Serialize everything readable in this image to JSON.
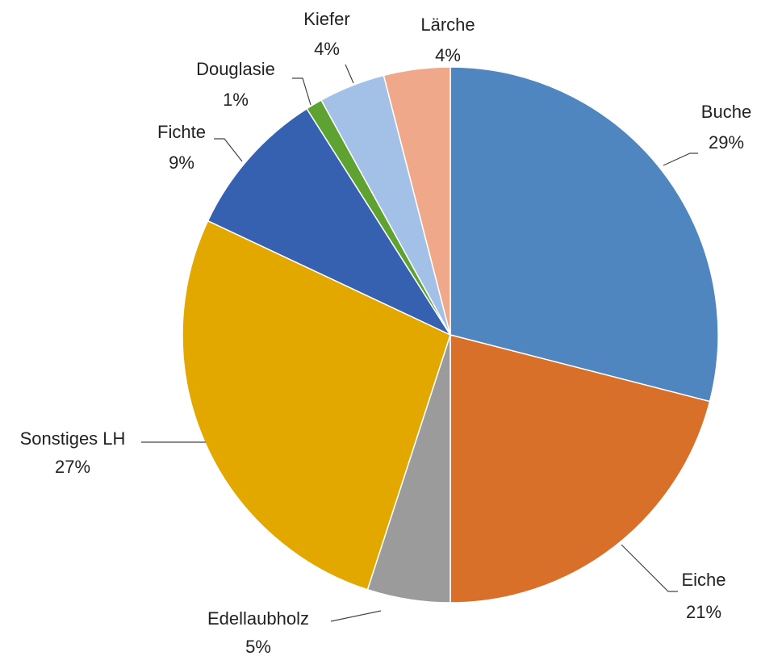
{
  "chart_data": {
    "type": "pie",
    "categories": [
      "Buche",
      "Eiche",
      "Edellaubholz",
      "Sonstiges LH",
      "Fichte",
      "Douglasie",
      "Kiefer",
      "Lärche"
    ],
    "values": [
      29,
      21,
      5,
      27,
      9,
      1,
      4,
      4
    ],
    "value_labels": [
      "29%",
      "21%",
      "5%",
      "27%",
      "9%",
      "1%",
      "4%",
      "4%"
    ],
    "colors": [
      "#4f86c0",
      "#d9702a",
      "#9b9b9b",
      "#e2a800",
      "#3561b0",
      "#5ea332",
      "#a3c0e6",
      "#f0a88a"
    ]
  }
}
